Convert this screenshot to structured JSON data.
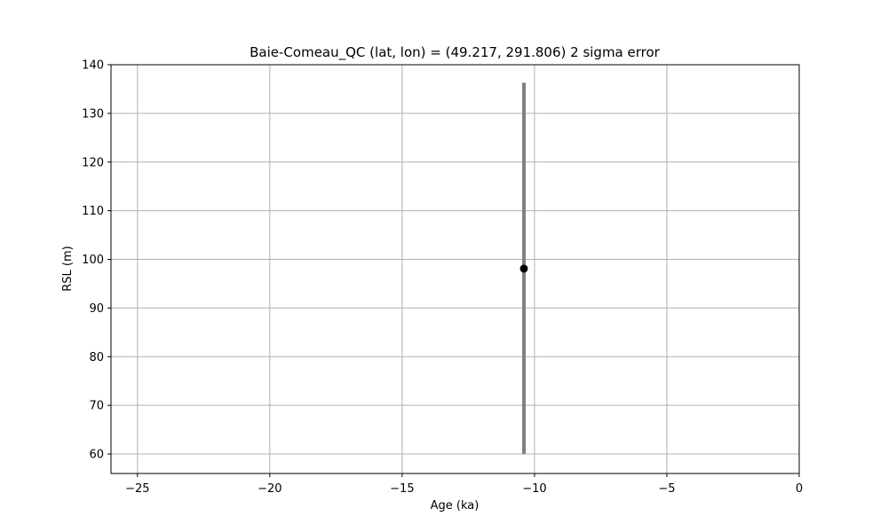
{
  "chart_data": {
    "type": "scatter",
    "title": "Baie-Comeau_QC (lat, lon) = (49.217, 291.806)  2 sigma error",
    "xlabel": "Age (ka)",
    "ylabel": "RSL (m)",
    "xlim": [
      -26,
      0
    ],
    "ylim": [
      56,
      140
    ],
    "xticks": [
      -25,
      -20,
      -15,
      -10,
      -5,
      0
    ],
    "xtick_labels": [
      "−25",
      "−20",
      "−15",
      "−10",
      "−5",
      "0"
    ],
    "yticks": [
      60,
      70,
      80,
      90,
      100,
      110,
      120,
      130,
      140
    ],
    "ytick_labels": [
      "60",
      "70",
      "80",
      "90",
      "100",
      "110",
      "120",
      "130",
      "140"
    ],
    "grid": true,
    "points": [
      {
        "x": -10.4,
        "y": 98.1,
        "y_err_low": 60.0,
        "y_err_high": 136.3
      }
    ],
    "colors": {
      "point": "#000000",
      "errorbar": "#808080",
      "grid": "#b0b0b0",
      "axes": "#000000"
    }
  }
}
